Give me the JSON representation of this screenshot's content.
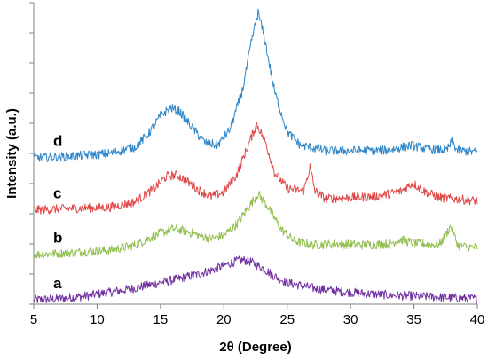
{
  "chart_data": {
    "type": "line",
    "xlabel": "2θ (Degree)",
    "ylabel": "Intensity (a.u.)",
    "xlim": [
      5,
      40
    ],
    "x_ticks": [
      "5",
      "10",
      "15",
      "20",
      "25",
      "30",
      "35",
      "40"
    ],
    "x_tick_values": [
      5,
      10,
      15,
      20,
      25,
      30,
      35,
      40
    ],
    "y_ticks_labeled": false,
    "y_tick_count": 10,
    "grid": false,
    "legend": "none",
    "series": [
      {
        "name": "a",
        "color": "#7030a0",
        "x": [
          5,
          7,
          9,
          11,
          13,
          15,
          17,
          19,
          20,
          21,
          21.5,
          22,
          23,
          24,
          25,
          27,
          29,
          31,
          33,
          35,
          37,
          40
        ],
        "y": [
          0.08,
          0.1,
          0.15,
          0.22,
          0.3,
          0.4,
          0.5,
          0.63,
          0.72,
          0.8,
          0.82,
          0.8,
          0.68,
          0.52,
          0.4,
          0.3,
          0.24,
          0.2,
          0.17,
          0.15,
          0.13,
          0.1
        ]
      },
      {
        "name": "b",
        "color": "#92c050",
        "x": [
          5,
          8,
          11,
          13,
          15,
          16,
          17,
          18,
          19,
          20,
          21,
          22,
          22.7,
          23.5,
          24.5,
          25.5,
          27,
          29,
          31,
          33,
          34,
          35,
          37,
          37.9,
          38.5,
          40
        ],
        "y": [
          0.92,
          0.96,
          1.0,
          1.1,
          1.32,
          1.4,
          1.36,
          1.28,
          1.22,
          1.28,
          1.48,
          1.82,
          2.05,
          1.8,
          1.4,
          1.18,
          1.1,
          1.12,
          1.1,
          1.12,
          1.2,
          1.13,
          1.1,
          1.45,
          1.08,
          1.05
        ]
      },
      {
        "name": "c",
        "color": "#e04848",
        "x": [
          5,
          8,
          11,
          13,
          14.5,
          15.5,
          16.3,
          17,
          18,
          19,
          20,
          21,
          22,
          22.6,
          23.3,
          24,
          25,
          26.3,
          26.8,
          27.2,
          28,
          30,
          32,
          34,
          34.9,
          35.8,
          37,
          40
        ],
        "y": [
          1.75,
          1.78,
          1.8,
          1.9,
          2.15,
          2.38,
          2.4,
          2.3,
          2.12,
          2.0,
          2.08,
          2.4,
          3.0,
          3.35,
          3.0,
          2.45,
          2.15,
          2.1,
          2.55,
          2.1,
          1.96,
          1.98,
          2.0,
          2.1,
          2.25,
          2.1,
          1.98,
          1.92
        ]
      },
      {
        "name": "d",
        "color": "#2e86c8",
        "x": [
          5,
          8,
          11,
          13,
          14,
          15,
          15.8,
          16.5,
          17.5,
          18.5,
          19.5,
          20.5,
          21.5,
          22.2,
          22.7,
          23.2,
          24,
          25,
          26,
          28,
          30,
          33,
          34.8,
          36,
          37.6,
          38,
          38.4,
          40
        ],
        "y": [
          2.72,
          2.75,
          2.8,
          2.92,
          3.15,
          3.5,
          3.65,
          3.58,
          3.28,
          3.0,
          2.95,
          3.25,
          4.0,
          4.9,
          5.42,
          4.95,
          3.95,
          3.2,
          2.96,
          2.85,
          2.85,
          2.86,
          2.95,
          2.88,
          2.86,
          3.02,
          2.86,
          2.82
        ]
      }
    ]
  }
}
